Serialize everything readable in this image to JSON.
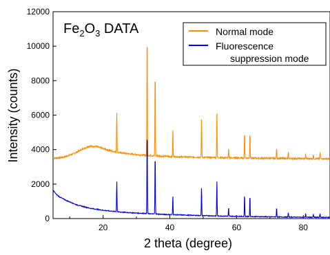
{
  "chart_data": {
    "type": "line",
    "title_main": "Fe",
    "title_sub1": "2",
    "title_mid": "O",
    "title_sub2": "3",
    "title_tail": " DATA",
    "xlabel": "2 theta (degree)",
    "ylabel": "Intensity (counts)",
    "xlim": [
      5,
      88
    ],
    "ylim": [
      0,
      12000
    ],
    "x_ticks": [
      20,
      40,
      60,
      80
    ],
    "y_ticks": [
      0,
      2000,
      4000,
      6000,
      8000,
      10000,
      12000
    ],
    "legend_position": "top-right",
    "legend": {
      "item1": "Normal mode",
      "item2_line1": "Fluorescence",
      "item2_line2": "suppression mode"
    },
    "series": [
      {
        "name": "Normal mode",
        "color": "#FF8C00",
        "background": [
          [
            5,
            3500
          ],
          [
            8,
            3550
          ],
          [
            11,
            3750
          ],
          [
            14,
            4050
          ],
          [
            16,
            4200
          ],
          [
            18,
            4180
          ],
          [
            21,
            4000
          ],
          [
            24,
            3850
          ],
          [
            28,
            3750
          ],
          [
            32,
            3680
          ],
          [
            40,
            3600
          ],
          [
            50,
            3550
          ],
          [
            60,
            3520
          ],
          [
            70,
            3500
          ],
          [
            80,
            3480
          ],
          [
            88,
            3470
          ]
        ],
        "peaks": [
          [
            24.1,
            6300
          ],
          [
            33.2,
            11300
          ],
          [
            35.6,
            8850
          ],
          [
            40.9,
            5150
          ],
          [
            49.5,
            5850
          ],
          [
            54.1,
            6250
          ],
          [
            57.6,
            4050
          ],
          [
            62.4,
            5100
          ],
          [
            64.0,
            5100
          ],
          [
            72.0,
            4100
          ],
          [
            75.5,
            3850
          ],
          [
            80.7,
            3750
          ],
          [
            83.0,
            3700
          ],
          [
            85.0,
            3800
          ]
        ]
      },
      {
        "name": "Fluorescence suppression mode",
        "color": "#0000E0",
        "background": [
          [
            5,
            1650
          ],
          [
            6,
            1400
          ],
          [
            7,
            1250
          ],
          [
            9,
            1050
          ],
          [
            12,
            800
          ],
          [
            16,
            600
          ],
          [
            20,
            480
          ],
          [
            25,
            380
          ],
          [
            30,
            320
          ],
          [
            35,
            270
          ],
          [
            40,
            230
          ],
          [
            50,
            170
          ],
          [
            60,
            130
          ],
          [
            70,
            100
          ],
          [
            80,
            80
          ],
          [
            88,
            70
          ]
        ],
        "peaks": [
          [
            24.1,
            2250
          ],
          [
            33.2,
            5450
          ],
          [
            35.6,
            3950
          ],
          [
            40.9,
            1350
          ],
          [
            49.5,
            1850
          ],
          [
            54.1,
            2250
          ],
          [
            57.6,
            650
          ],
          [
            62.4,
            1450
          ],
          [
            64.0,
            1400
          ],
          [
            72.0,
            650
          ],
          [
            75.5,
            350
          ],
          [
            80.7,
            300
          ],
          [
            83.0,
            250
          ],
          [
            85.0,
            300
          ]
        ]
      }
    ]
  }
}
